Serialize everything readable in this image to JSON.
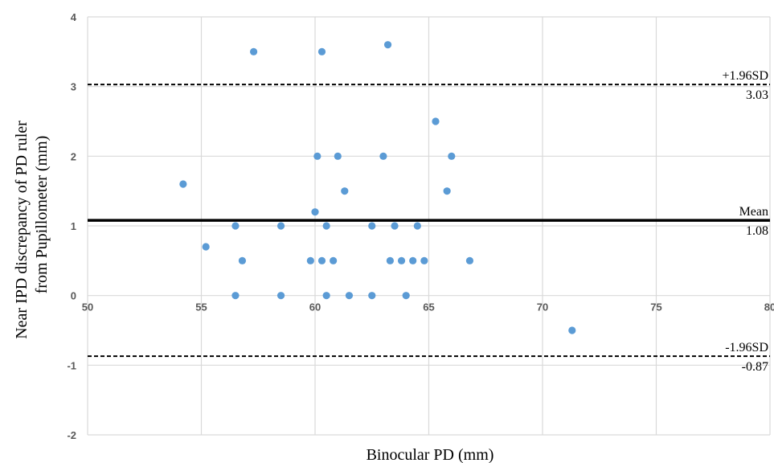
{
  "chart_data": {
    "type": "scatter",
    "xlabel": "Binocular  PD  (mm)",
    "ylabel_lines": [
      "Near IPD discrepancy  of PD ruler",
      "from Pupillometer  (mm)"
    ],
    "xlim": [
      50,
      80
    ],
    "ylim": [
      -2,
      4
    ],
    "x_ticks": [
      50,
      55,
      60,
      65,
      70,
      75,
      80
    ],
    "y_ticks": [
      -2,
      -1,
      0,
      1,
      2,
      3,
      4
    ],
    "x_tick_labels": [
      "50",
      "55",
      "60",
      "65",
      "70",
      "75",
      "80"
    ],
    "y_tick_labels": [
      "-2",
      "-1",
      "0",
      "1",
      "2",
      "3",
      "4"
    ],
    "grid": true,
    "point_color": "#5b9bd5",
    "points": [
      {
        "x": 57.3,
        "y": 3.5
      },
      {
        "x": 60.3,
        "y": 3.5
      },
      {
        "x": 63.2,
        "y": 3.6
      },
      {
        "x": 65.3,
        "y": 2.5
      },
      {
        "x": 60.1,
        "y": 2.0
      },
      {
        "x": 61.0,
        "y": 2.0
      },
      {
        "x": 63.0,
        "y": 2.0
      },
      {
        "x": 66.0,
        "y": 2.0
      },
      {
        "x": 54.2,
        "y": 1.6
      },
      {
        "x": 61.3,
        "y": 1.5
      },
      {
        "x": 65.8,
        "y": 1.5
      },
      {
        "x": 60.0,
        "y": 1.2
      },
      {
        "x": 56.5,
        "y": 1.0
      },
      {
        "x": 58.5,
        "y": 1.0
      },
      {
        "x": 60.5,
        "y": 1.0
      },
      {
        "x": 62.5,
        "y": 1.0
      },
      {
        "x": 63.5,
        "y": 1.0
      },
      {
        "x": 64.5,
        "y": 1.0
      },
      {
        "x": 55.2,
        "y": 0.7
      },
      {
        "x": 56.8,
        "y": 0.5
      },
      {
        "x": 59.8,
        "y": 0.5
      },
      {
        "x": 60.3,
        "y": 0.5
      },
      {
        "x": 60.8,
        "y": 0.5
      },
      {
        "x": 63.3,
        "y": 0.5
      },
      {
        "x": 63.8,
        "y": 0.5
      },
      {
        "x": 64.3,
        "y": 0.5
      },
      {
        "x": 64.8,
        "y": 0.5
      },
      {
        "x": 66.8,
        "y": 0.5
      },
      {
        "x": 56.5,
        "y": 0.0
      },
      {
        "x": 58.5,
        "y": 0.0
      },
      {
        "x": 60.5,
        "y": 0.0
      },
      {
        "x": 61.5,
        "y": 0.0
      },
      {
        "x": 62.5,
        "y": 0.0
      },
      {
        "x": 64.0,
        "y": 0.0
      },
      {
        "x": 71.3,
        "y": -0.5
      }
    ],
    "reference_lines": [
      {
        "label": "+1.96SD",
        "value_label": "3.03",
        "y": 3.03,
        "style": "dashed"
      },
      {
        "label": "Mean",
        "value_label": "1.08",
        "y": 1.08,
        "style": "solid"
      },
      {
        "label": "-1.96SD",
        "value_label": "-0.87",
        "y": -0.87,
        "style": "dashed"
      }
    ]
  }
}
